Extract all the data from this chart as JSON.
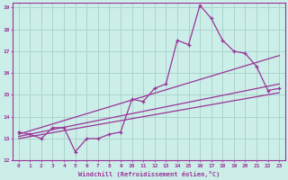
{
  "xlabel": "Windchill (Refroidissement éolien,°C)",
  "xlim": [
    -0.5,
    23.5
  ],
  "ylim": [
    12,
    19.2
  ],
  "xticks": [
    0,
    1,
    2,
    3,
    4,
    5,
    6,
    7,
    8,
    9,
    10,
    11,
    12,
    13,
    14,
    15,
    16,
    17,
    18,
    19,
    20,
    21,
    22,
    23
  ],
  "yticks": [
    12,
    13,
    14,
    15,
    16,
    17,
    18,
    19
  ],
  "background_color": "#cceee8",
  "grid_color": "#aad4cc",
  "line_color": "#993399",
  "series1_x": [
    0,
    1,
    2,
    3,
    4,
    5,
    6,
    7,
    8,
    9,
    10,
    11,
    12,
    13,
    14,
    15,
    16,
    17,
    18,
    19,
    20,
    21,
    22,
    23
  ],
  "series1_y": [
    13.3,
    13.2,
    13.0,
    13.5,
    13.5,
    12.4,
    13.0,
    13.0,
    13.2,
    13.3,
    14.8,
    14.7,
    15.3,
    15.5,
    17.5,
    17.3,
    19.1,
    18.5,
    17.5,
    17.0,
    16.9,
    16.3,
    15.2,
    15.3
  ],
  "series2_x": [
    0,
    23
  ],
  "series2_y": [
    13.2,
    16.8
  ],
  "series3_x": [
    0,
    23
  ],
  "series3_y": [
    13.1,
    15.5
  ],
  "series4_x": [
    0,
    23
  ],
  "series4_y": [
    13.0,
    15.1
  ]
}
